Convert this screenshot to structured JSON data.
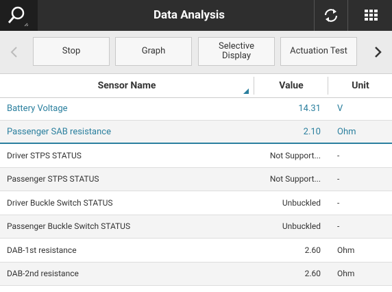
{
  "header": {
    "title": "Data Analysis"
  },
  "toolbar": {
    "buttons": [
      "Stop",
      "Graph",
      "Selective\nDisplay",
      "Actuation Test"
    ]
  },
  "table": {
    "columns": [
      "Sensor Name",
      "Value",
      "Unit"
    ],
    "rows": [
      [
        "Battery Voltage",
        "14.31",
        "V"
      ],
      [
        "Passenger SAB resistance",
        "2.10",
        "Ohm"
      ],
      [
        "Driver STPS STATUS",
        "Not Support...",
        "-"
      ],
      [
        "Passenger STPS STATUS",
        "Not Support...",
        "-"
      ],
      [
        "Driver Buckle Switch STATUS",
        "Unbuckled",
        "-"
      ],
      [
        "Passenger Buckle Switch STATUS",
        "Unbuckled",
        "-"
      ],
      [
        "DAB-1st resistance",
        "2.60",
        "Ohm"
      ],
      [
        "DAB-2nd resistance",
        "2.60",
        "Ohm"
      ]
    ]
  }
}
